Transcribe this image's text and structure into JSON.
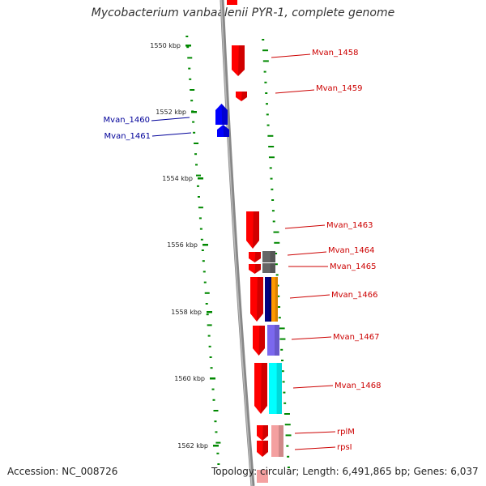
{
  "title": "Mycobacterium vanbaalenii PYR-1, complete genome",
  "footer": {
    "accession": "Accession: NC_008726",
    "topology": "Topology: circular; Length: 6,491,865 bp; Genes: 6,037"
  },
  "ticks": [
    "1550 kbp",
    "1552 kbp",
    "1554 kbp",
    "1556 kbp",
    "1558 kbp",
    "1560 kbp",
    "1562 kbp"
  ],
  "gene_labels": [
    {
      "name": "Mvan_1458",
      "strand": "forward"
    },
    {
      "name": "Mvan_1459",
      "strand": "forward"
    },
    {
      "name": "Mvan_1460",
      "strand": "reverse"
    },
    {
      "name": "Mvan_1461",
      "strand": "reverse"
    },
    {
      "name": "Mvan_1463",
      "strand": "forward"
    },
    {
      "name": "Mvan_1464",
      "strand": "forward"
    },
    {
      "name": "Mvan_1465",
      "strand": "forward"
    },
    {
      "name": "Mvan_1466",
      "strand": "forward"
    },
    {
      "name": "Mvan_1467",
      "strand": "forward"
    },
    {
      "name": "Mvan_1468",
      "strand": "forward"
    },
    {
      "name": "rplM",
      "strand": "forward"
    },
    {
      "name": "rpsI",
      "strand": "forward"
    }
  ],
  "colors": {
    "forward_gene": "#ff0000",
    "reverse_gene": "#0000ff",
    "backbone": "#888888",
    "gc_dots": "#008800",
    "forward_label": "#cc0000",
    "reverse_label": "#000099",
    "cog_gray": "#666666",
    "cog_navy": "#000080",
    "cog_orange": "#ff9900",
    "cog_purple": "#7b68ee",
    "cog_cyan": "#00ffff",
    "cog_pink": "#f4a0a0"
  }
}
